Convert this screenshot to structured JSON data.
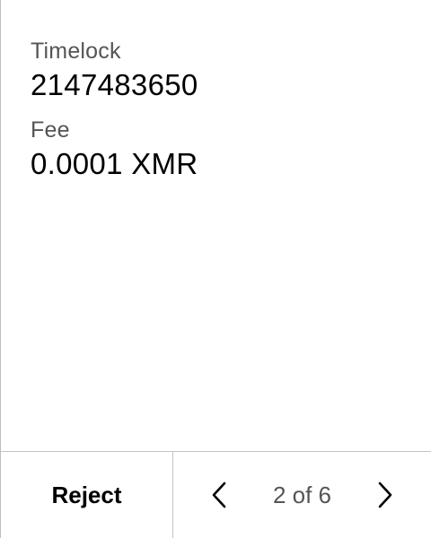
{
  "details": {
    "timelock_label": "Timelock",
    "timelock_value": "2147483650",
    "fee_label": "Fee",
    "fee_value": "0.0001 XMR"
  },
  "footer": {
    "reject_label": "Reject",
    "page_indicator": "2 of 6",
    "prev_icon": "chevron-left-icon",
    "next_icon": "chevron-right-icon"
  },
  "colors": {
    "label": "#555555",
    "value": "#000000",
    "divider": "#c4c4c4"
  }
}
